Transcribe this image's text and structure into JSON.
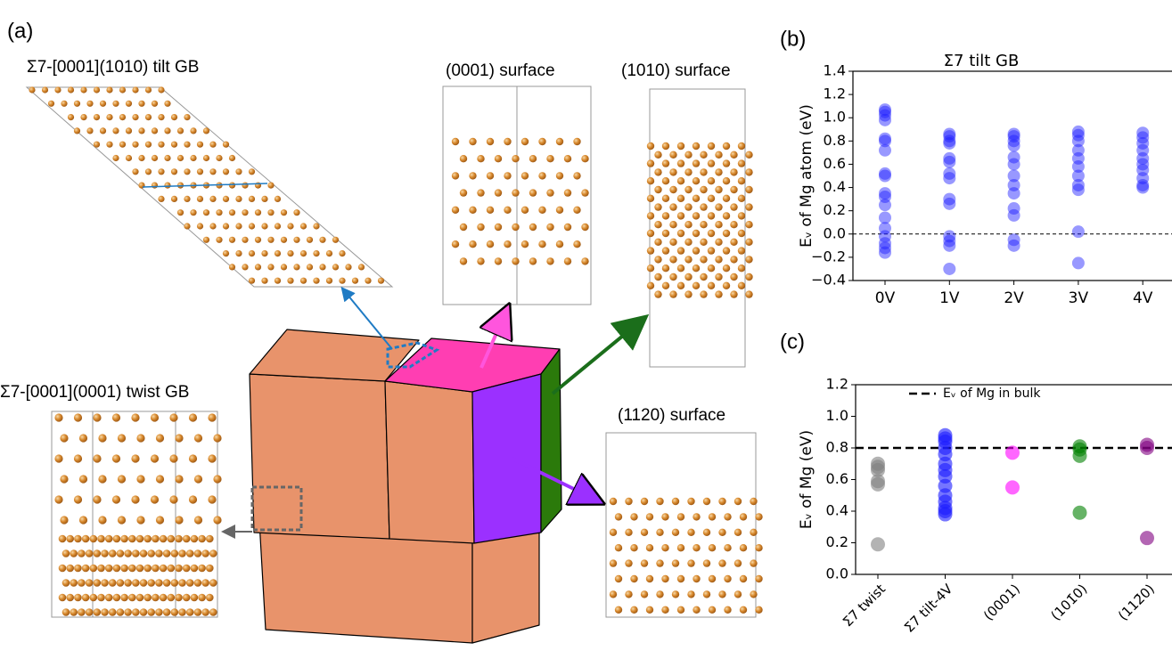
{
  "figure": {
    "panel_a": {
      "label": "(a)",
      "tilt_gb_title": "Σ7-[0001](1010) tilt GB",
      "twist_gb_title": "Σ7-[0001](0001) twist GB",
      "surface_0001": "(0001) surface",
      "surface_1010": "(1010) surface",
      "surface_1120": "(1120) surface"
    }
  },
  "chart_data": [
    {
      "type": "strip",
      "panel_label": "(b)",
      "title": "Σ7 tilt GB",
      "y_label": "Eᵥ of Mg atom (eV)",
      "categories": [
        "0V",
        "1V",
        "2V",
        "3V",
        "4V"
      ],
      "values": [
        [
          1.07,
          1.05,
          1.02,
          0.98,
          0.82,
          0.8,
          0.72,
          0.52,
          0.5,
          0.35,
          0.32,
          0.25,
          0.14,
          0.05,
          -0.02,
          -0.08,
          -0.12,
          -0.16
        ],
        [
          0.86,
          0.84,
          0.8,
          0.78,
          0.65,
          0.62,
          0.52,
          0.48,
          0.3,
          0.26,
          -0.02,
          -0.06,
          -0.1,
          -0.3
        ],
        [
          0.86,
          0.84,
          0.8,
          0.76,
          0.66,
          0.6,
          0.5,
          0.42,
          0.35,
          0.22,
          0.16,
          -0.05,
          -0.1
        ],
        [
          0.88,
          0.85,
          0.8,
          0.72,
          0.65,
          0.58,
          0.5,
          0.42,
          0.38,
          0.02,
          -0.25
        ],
        [
          0.87,
          0.83,
          0.78,
          0.72,
          0.65,
          0.6,
          0.55,
          0.48,
          0.42,
          0.4
        ]
      ],
      "color": "#1a1aff",
      "alpha": 0.45,
      "ylim": [
        -0.4,
        1.4
      ],
      "yticks": [
        {
          "value": -0.4,
          "label": "−0.4"
        },
        {
          "value": -0.2,
          "label": "−0.2"
        },
        {
          "value": 0,
          "label": "0.0"
        },
        0.2,
        0.4,
        0.6,
        0.8,
        {
          "value": 1,
          "label": "1.0"
        },
        1.2,
        1.4
      ],
      "reference_line": {
        "value": 0,
        "style": "dashed"
      }
    },
    {
      "type": "strip",
      "panel_label": "(c)",
      "y_label": "Eᵥ of Mg (eV)",
      "categories": [
        "Σ7 twist",
        "Σ7 tilt-4V",
        "(0001)",
        "(101̄0)",
        "(112̄0)"
      ],
      "values": [
        [
          0.7,
          0.68,
          0.66,
          0.59,
          0.57,
          0.19
        ],
        [
          0.88,
          0.86,
          0.84,
          0.8,
          0.76,
          0.7,
          0.66,
          0.62,
          0.56,
          0.5,
          0.46,
          0.42,
          0.4,
          0.38
        ],
        [
          0.77,
          0.55
        ],
        [
          0.81,
          0.79,
          0.75,
          0.39
        ],
        [
          0.82,
          0.8,
          0.23
        ]
      ],
      "colors": [
        "#808080",
        "#1a1aff",
        "#ff00ff",
        "#008000",
        "#800080"
      ],
      "alpha": 0.6,
      "ylim": [
        0,
        1.2
      ],
      "yticks": [
        {
          "value": 0,
          "label": "0.0"
        },
        0.2,
        0.4,
        0.6,
        0.8,
        {
          "value": 1,
          "label": "1.0"
        },
        1.2
      ],
      "reference_line": {
        "value": 0.8,
        "label": "Eᵥ of Mg in bulk",
        "style": "dashed"
      }
    }
  ]
}
